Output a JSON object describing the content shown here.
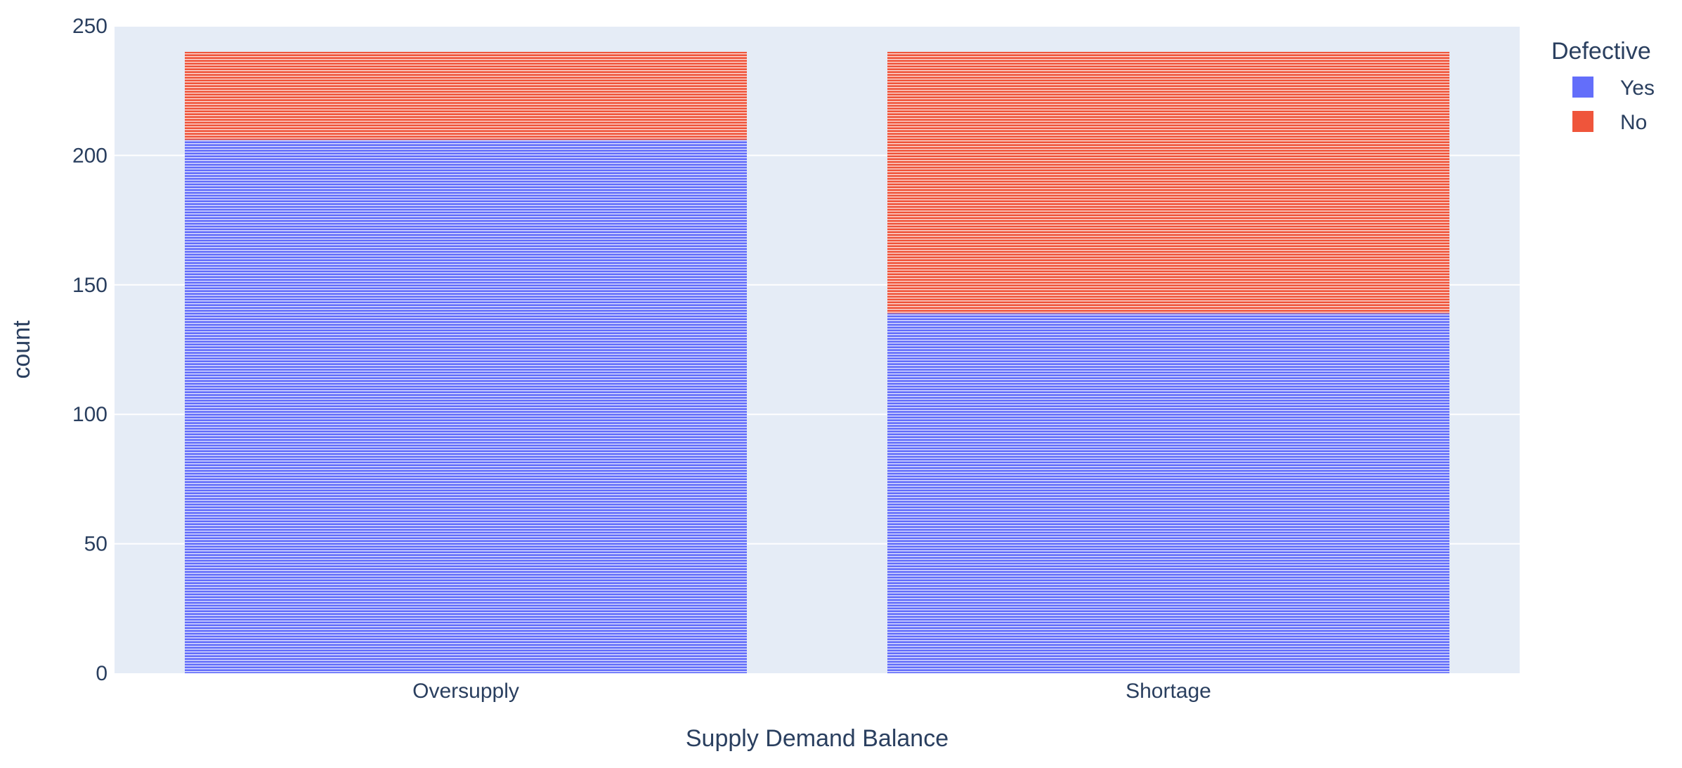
{
  "chart_data": {
    "type": "bar",
    "barmode": "stack",
    "categories": [
      "Oversupply",
      "Shortage"
    ],
    "series": [
      {
        "name": "Yes",
        "values": [
          206,
          139
        ],
        "color": "#636efa"
      },
      {
        "name": "No",
        "values": [
          34,
          101
        ],
        "color": "#ef553b"
      }
    ],
    "xlabel": "Supply Demand Balance",
    "ylabel": "count",
    "ylim": [
      0,
      250
    ],
    "yticks": [
      0,
      50,
      100,
      150,
      200,
      250
    ],
    "grid": true,
    "legend": {
      "title": "Defective",
      "placement": "top-right"
    },
    "plot_background": "#e5ecf6"
  }
}
